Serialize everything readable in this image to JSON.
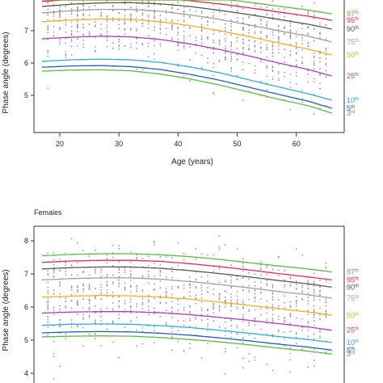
{
  "chart_data": [
    {
      "type": "line",
      "title": "",
      "xlabel": "Age (years)",
      "ylabel": "Phase angle (degrees)",
      "xlim": [
        17,
        67
      ],
      "ylim": [
        4,
        8
      ],
      "x_ticks": [
        "20",
        "30",
        "40",
        "50",
        "60"
      ],
      "y_ticks": [
        "5",
        "6",
        "7"
      ],
      "grid": false,
      "legend": "right",
      "x": [
        17,
        22,
        27,
        32,
        37,
        42,
        47,
        52,
        57,
        62,
        66
      ],
      "series": [
        {
          "name": "3rd",
          "label_sup": "rd",
          "label_base": "3",
          "color": "#5dbb3f",
          "values": [
            5.75,
            5.78,
            5.79,
            5.76,
            5.66,
            5.51,
            5.32,
            5.1,
            4.88,
            4.68,
            4.45
          ]
        },
        {
          "name": "5th",
          "label_sup": "th",
          "label_base": "5",
          "color": "#1f5ad8",
          "values": [
            5.87,
            5.91,
            5.92,
            5.89,
            5.8,
            5.65,
            5.47,
            5.25,
            5.03,
            4.82,
            4.6
          ]
        },
        {
          "name": "10th",
          "label_sup": "th",
          "label_base": "10",
          "color": "#2ab0d8",
          "values": [
            6.05,
            6.1,
            6.12,
            6.1,
            6.02,
            5.88,
            5.7,
            5.48,
            5.26,
            5.05,
            4.85
          ]
        },
        {
          "name": "25th",
          "label_sup": "th",
          "label_base": "25",
          "color": "#b03cb8",
          "values": [
            6.75,
            6.8,
            6.83,
            6.81,
            6.73,
            6.59,
            6.42,
            6.22,
            6.0,
            5.8,
            5.6
          ]
        },
        {
          "name": "50th",
          "label_sup": "th",
          "label_base": "50",
          "color": "#f0b21e",
          "values": [
            7.28,
            7.33,
            7.36,
            7.35,
            7.28,
            7.16,
            7.0,
            6.82,
            6.62,
            6.43,
            6.25
          ]
        },
        {
          "name": "75th",
          "label_sup": "th",
          "label_base": "75",
          "color": "#9e9e9e",
          "values": [
            7.55,
            7.62,
            7.66,
            7.66,
            7.6,
            7.49,
            7.35,
            7.18,
            7.0,
            6.83,
            6.65
          ]
        },
        {
          "name": "90th",
          "label_sup": "th",
          "label_base": "90",
          "color": "#555555",
          "values": [
            7.75,
            7.82,
            7.86,
            7.87,
            7.83,
            7.75,
            7.63,
            7.5,
            7.35,
            7.2,
            7.05
          ]
        },
        {
          "name": "95th",
          "label_sup": "th",
          "label_base": "95",
          "color": "#e8285a",
          "values": [
            7.9,
            7.97,
            8.02,
            8.03,
            8.0,
            7.93,
            7.83,
            7.71,
            7.58,
            7.45,
            7.32
          ]
        },
        {
          "name": "97th",
          "label_sup": "th",
          "label_base": "97",
          "color": "#5dbb3f",
          "values": [
            8.02,
            8.1,
            8.15,
            8.17,
            8.14,
            8.08,
            7.99,
            7.88,
            7.76,
            7.64,
            7.52
          ]
        }
      ]
    },
    {
      "type": "line",
      "title": "Females",
      "xlabel": "",
      "ylabel": "Phase angle (degrees)",
      "xlim": [
        17,
        67
      ],
      "ylim": [
        3.8,
        8.8
      ],
      "x_ticks": [],
      "y_ticks": [
        "4",
        "5",
        "6",
        "7",
        "8"
      ],
      "grid": false,
      "legend": "right",
      "x": [
        17,
        22,
        27,
        32,
        37,
        42,
        47,
        52,
        57,
        62,
        66
      ],
      "series": [
        {
          "name": "3rd",
          "label_sup": "rd",
          "label_base": "3",
          "color": "#5dbb3f",
          "values": [
            5.1,
            5.12,
            5.13,
            5.12,
            5.08,
            5.02,
            4.95,
            4.86,
            4.76,
            4.67,
            4.58
          ]
        },
        {
          "name": "5th",
          "label_sup": "th",
          "label_base": "5",
          "color": "#1f5ad8",
          "values": [
            5.22,
            5.25,
            5.26,
            5.25,
            5.21,
            5.15,
            5.07,
            4.98,
            4.88,
            4.79,
            4.7
          ]
        },
        {
          "name": "10th",
          "label_sup": "th",
          "label_base": "10",
          "color": "#2ab0d8",
          "values": [
            5.45,
            5.48,
            5.49,
            5.48,
            5.44,
            5.38,
            5.3,
            5.21,
            5.11,
            5.02,
            4.93
          ]
        },
        {
          "name": "25th",
          "label_sup": "th",
          "label_base": "25",
          "color": "#b03cb8",
          "values": [
            5.82,
            5.85,
            5.86,
            5.86,
            5.83,
            5.77,
            5.69,
            5.6,
            5.5,
            5.4,
            5.3
          ]
        },
        {
          "name": "50th",
          "label_sup": "th",
          "label_base": "50",
          "color": "#f0b21e",
          "values": [
            6.3,
            6.33,
            6.35,
            6.34,
            6.3,
            6.24,
            6.15,
            6.05,
            5.95,
            5.85,
            5.75
          ]
        },
        {
          "name": "75th",
          "label_sup": "th",
          "label_base": "75",
          "color": "#9e9e9e",
          "values": [
            6.82,
            6.86,
            6.88,
            6.88,
            6.84,
            6.77,
            6.68,
            6.58,
            6.47,
            6.37,
            6.27
          ]
        },
        {
          "name": "90th",
          "label_sup": "th",
          "label_base": "90",
          "color": "#555555",
          "values": [
            7.15,
            7.19,
            7.21,
            7.21,
            7.17,
            7.1,
            7.01,
            6.91,
            6.8,
            6.7,
            6.6
          ]
        },
        {
          "name": "95th",
          "label_sup": "th",
          "label_base": "95",
          "color": "#e8285a",
          "values": [
            7.35,
            7.39,
            7.41,
            7.41,
            7.38,
            7.31,
            7.22,
            7.12,
            7.01,
            6.91,
            6.82
          ]
        },
        {
          "name": "97th",
          "label_sup": "th",
          "label_base": "97",
          "color": "#5dbb3f",
          "values": [
            7.55,
            7.59,
            7.61,
            7.61,
            7.58,
            7.52,
            7.44,
            7.34,
            7.24,
            7.15,
            7.06
          ]
        }
      ]
    }
  ]
}
